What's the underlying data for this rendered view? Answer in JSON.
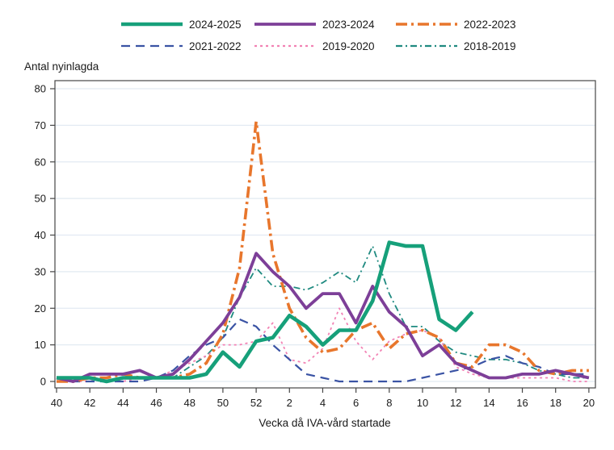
{
  "chart_data": {
    "type": "line",
    "title": "",
    "y_axis_title": "Antal nyinlagda",
    "xlabel": "Vecka då IVA-vård startade",
    "ylabel": "",
    "ylim": [
      0,
      80
    ],
    "y_ticks": [
      0,
      10,
      20,
      30,
      40,
      50,
      60,
      70,
      80
    ],
    "grid": true,
    "legend_position": "top",
    "x_tick_every": 2,
    "weeks": [
      "40",
      "41",
      "42",
      "43",
      "44",
      "45",
      "46",
      "47",
      "48",
      "49",
      "50",
      "51",
      "52",
      "1",
      "2",
      "3",
      "4",
      "5",
      "6",
      "7",
      "8",
      "9",
      "10",
      "11",
      "12",
      "13",
      "14",
      "15",
      "16",
      "17",
      "18",
      "19",
      "20"
    ],
    "series": [
      {
        "name": "2018-2019",
        "color": "#1f8a80",
        "style": "dashdotdot",
        "width": 1.8,
        "values": [
          0,
          0,
          1,
          0,
          1,
          1,
          1,
          1,
          4,
          7,
          12,
          23,
          31,
          26,
          26,
          25,
          27,
          30,
          27,
          37,
          24,
          15,
          15,
          11,
          8,
          7,
          6,
          6,
          5,
          3,
          2,
          1,
          1
        ]
      },
      {
        "name": "2019-2020",
        "color": "#f282b4",
        "style": "dotted",
        "width": 1.8,
        "values": [
          0,
          0,
          0,
          1,
          0,
          1,
          1,
          3,
          5,
          7,
          10,
          10,
          11,
          16,
          6,
          5,
          9,
          20,
          11,
          6,
          11,
          13,
          14,
          12,
          4,
          2,
          1,
          1,
          1,
          1,
          1,
          0,
          0
        ]
      },
      {
        "name": "2021-2022",
        "color": "#3a53a4",
        "style": "dashed",
        "width": 2.2,
        "values": [
          0,
          0,
          0,
          0,
          0,
          0,
          1,
          3,
          7,
          10,
          12,
          17,
          15,
          10,
          6,
          2,
          1,
          0,
          0,
          0,
          0,
          0,
          1,
          2,
          3,
          4,
          6,
          7,
          5,
          4,
          2,
          2,
          2
        ]
      },
      {
        "name": "2022-2023",
        "color": "#e8762c",
        "style": "dashdot",
        "width": 3.6,
        "values": [
          0,
          0,
          1,
          1,
          2,
          1,
          1,
          1,
          2,
          5,
          13,
          31,
          71,
          35,
          20,
          12,
          8,
          9,
          14,
          16,
          9,
          13,
          14,
          12,
          5,
          4,
          10,
          10,
          8,
          3,
          2,
          3,
          3
        ]
      },
      {
        "name": "2023-2024",
        "color": "#7d3f98",
        "style": "solid",
        "width": 3.8,
        "values": [
          1,
          0,
          2,
          2,
          2,
          3,
          1,
          2,
          6,
          11,
          16,
          23,
          35,
          30,
          26,
          20,
          24,
          24,
          16,
          26,
          19,
          15,
          7,
          10,
          5,
          3,
          1,
          1,
          2,
          2,
          3,
          2,
          1
        ]
      },
      {
        "name": "2024-2025",
        "color": "#16a07a",
        "style": "solid",
        "width": 4.6,
        "values": [
          1,
          1,
          1,
          0,
          1,
          1,
          1,
          1,
          1,
          2,
          8,
          4,
          11,
          12,
          18,
          15,
          10,
          14,
          14,
          22,
          38,
          37,
          37,
          17,
          14,
          19,
          null,
          null,
          null,
          null,
          null,
          null,
          null
        ]
      }
    ],
    "legend_rows": [
      [
        "2024-2025",
        "2023-2024",
        "2022-2023"
      ],
      [
        "2021-2022",
        "2019-2020",
        "2018-2019"
      ]
    ]
  },
  "layout_text": {
    "note": ""
  }
}
